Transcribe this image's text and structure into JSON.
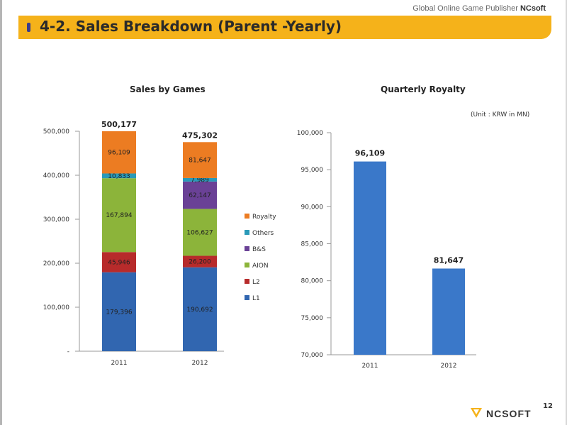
{
  "header": {
    "publisher_prefix": "Global Online Game Publisher ",
    "publisher_name": "NCsoft",
    "title": "4-2. Sales Breakdown (Parent -Yearly)"
  },
  "colors": {
    "title_bar": "#f5b21a",
    "L1": "#3166b0",
    "L2": "#b72b2b",
    "AION": "#8cb43a",
    "B&S": "#6a4196",
    "Others": "#2a9ab8",
    "Royalty": "#ec7c22",
    "royalty_bar": "#3a78c9"
  },
  "chart_data": [
    {
      "type": "bar",
      "stacked": true,
      "title": "Sales by Games",
      "categories": [
        "2011",
        "2012"
      ],
      "totals": [
        "500,177",
        "475,302"
      ],
      "series": [
        {
          "name": "L1",
          "values": [
            179396,
            190692
          ],
          "labels": [
            "179,396",
            "190,692"
          ]
        },
        {
          "name": "L2",
          "values": [
            45946,
            26200
          ],
          "labels": [
            "45,946",
            "26,200"
          ]
        },
        {
          "name": "AION",
          "values": [
            167894,
            106627
          ],
          "labels": [
            "167,894",
            "106,627"
          ]
        },
        {
          "name": "B&S",
          "values": [
            0,
            62147
          ],
          "labels": [
            "",
            "62,147"
          ]
        },
        {
          "name": "Others",
          "values": [
            10833,
            7989
          ],
          "labels": [
            "10,833",
            "7,989"
          ]
        },
        {
          "name": "Royalty",
          "values": [
            96109,
            81647
          ],
          "labels": [
            "96,109",
            "81,647"
          ]
        }
      ],
      "legend_order": [
        "Royalty",
        "Others",
        "B&S",
        "AION",
        "L2",
        "L1"
      ],
      "ylim": [
        0,
        500000
      ],
      "yticks": [
        "-",
        "100,000",
        "200,000",
        "300,000",
        "400,000",
        "500,000"
      ],
      "legend_position": "right"
    },
    {
      "type": "bar",
      "title": "Quarterly Royalty",
      "unit_note": "(Unit : KRW in MN)",
      "categories": [
        "2011",
        "2012"
      ],
      "values": [
        96109,
        81647
      ],
      "labels": [
        "96,109",
        "81,647"
      ],
      "ylim": [
        70000,
        100000
      ],
      "yticks": [
        "70,000",
        "75,000",
        "80,000",
        "85,000",
        "90,000",
        "95,000",
        "100,000"
      ]
    }
  ],
  "footer": {
    "page_number": "12",
    "logo_text": "NCSOFT"
  }
}
